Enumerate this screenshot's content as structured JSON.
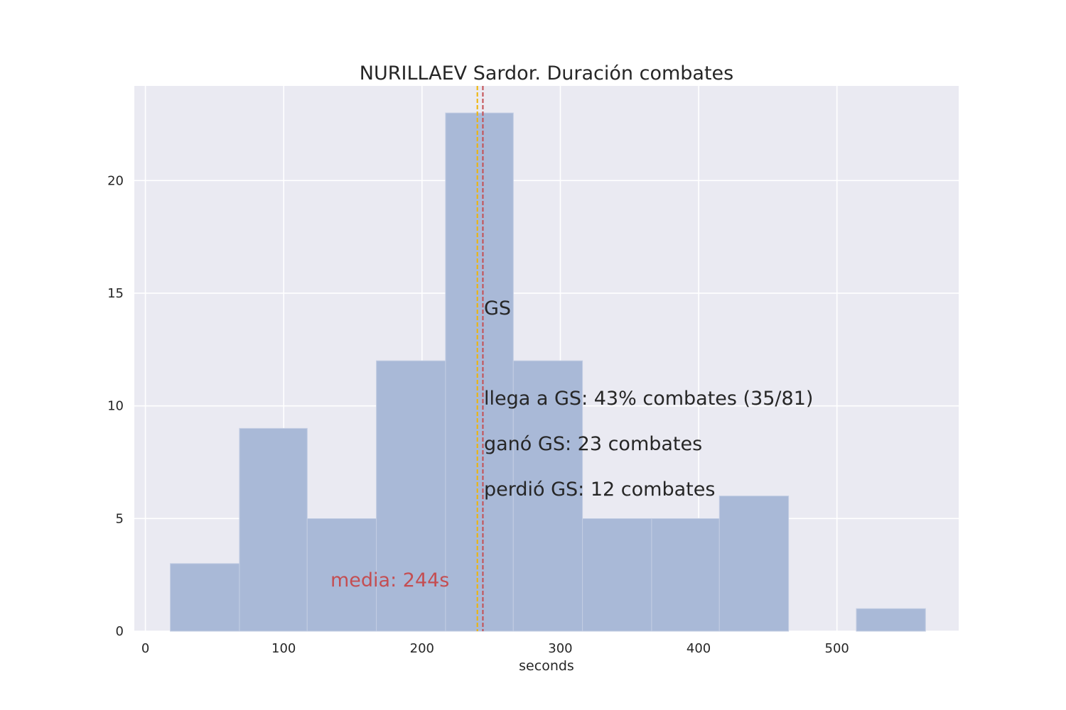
{
  "chart_data": {
    "type": "bar",
    "title": "NURILLAEV Sardor. Duración combates",
    "xlabel": "seconds",
    "ylabel": "",
    "xlim": [
      -8,
      588
    ],
    "ylim": [
      0,
      24.2
    ],
    "x_ticks": [
      0,
      100,
      200,
      300,
      400,
      500
    ],
    "y_ticks": [
      0,
      5,
      10,
      15,
      20
    ],
    "grid": true,
    "bar_color": "#a9b9d7",
    "background_color": "#eaeaf2",
    "bins": [
      {
        "x0": 18,
        "x1": 68,
        "value": 3
      },
      {
        "x0": 68,
        "x1": 117,
        "value": 9
      },
      {
        "x0": 117,
        "x1": 167,
        "value": 5
      },
      {
        "x0": 167,
        "x1": 217,
        "value": 12
      },
      {
        "x0": 217,
        "x1": 266,
        "value": 23
      },
      {
        "x0": 266,
        "x1": 316,
        "value": 12
      },
      {
        "x0": 316,
        "x1": 366,
        "value": 5
      },
      {
        "x0": 366,
        "x1": 415,
        "value": 5
      },
      {
        "x0": 415,
        "x1": 465,
        "value": 6
      },
      {
        "x0": 465,
        "x1": 514,
        "value": 0
      },
      {
        "x0": 514,
        "x1": 564,
        "value": 1
      }
    ],
    "vlines": [
      {
        "name": "mean",
        "x": 244,
        "color": "#c44e52"
      },
      {
        "name": "golden-score",
        "x": 240,
        "color": "#f0b400"
      }
    ],
    "annotations": {
      "gs": "GS",
      "reach_gs": "llega a GS: 43% combates (35/81)",
      "won_gs": "ganó GS: 23 combates",
      "lost_gs": "perdió GS: 12 combates",
      "mean": "media: 244s"
    }
  }
}
